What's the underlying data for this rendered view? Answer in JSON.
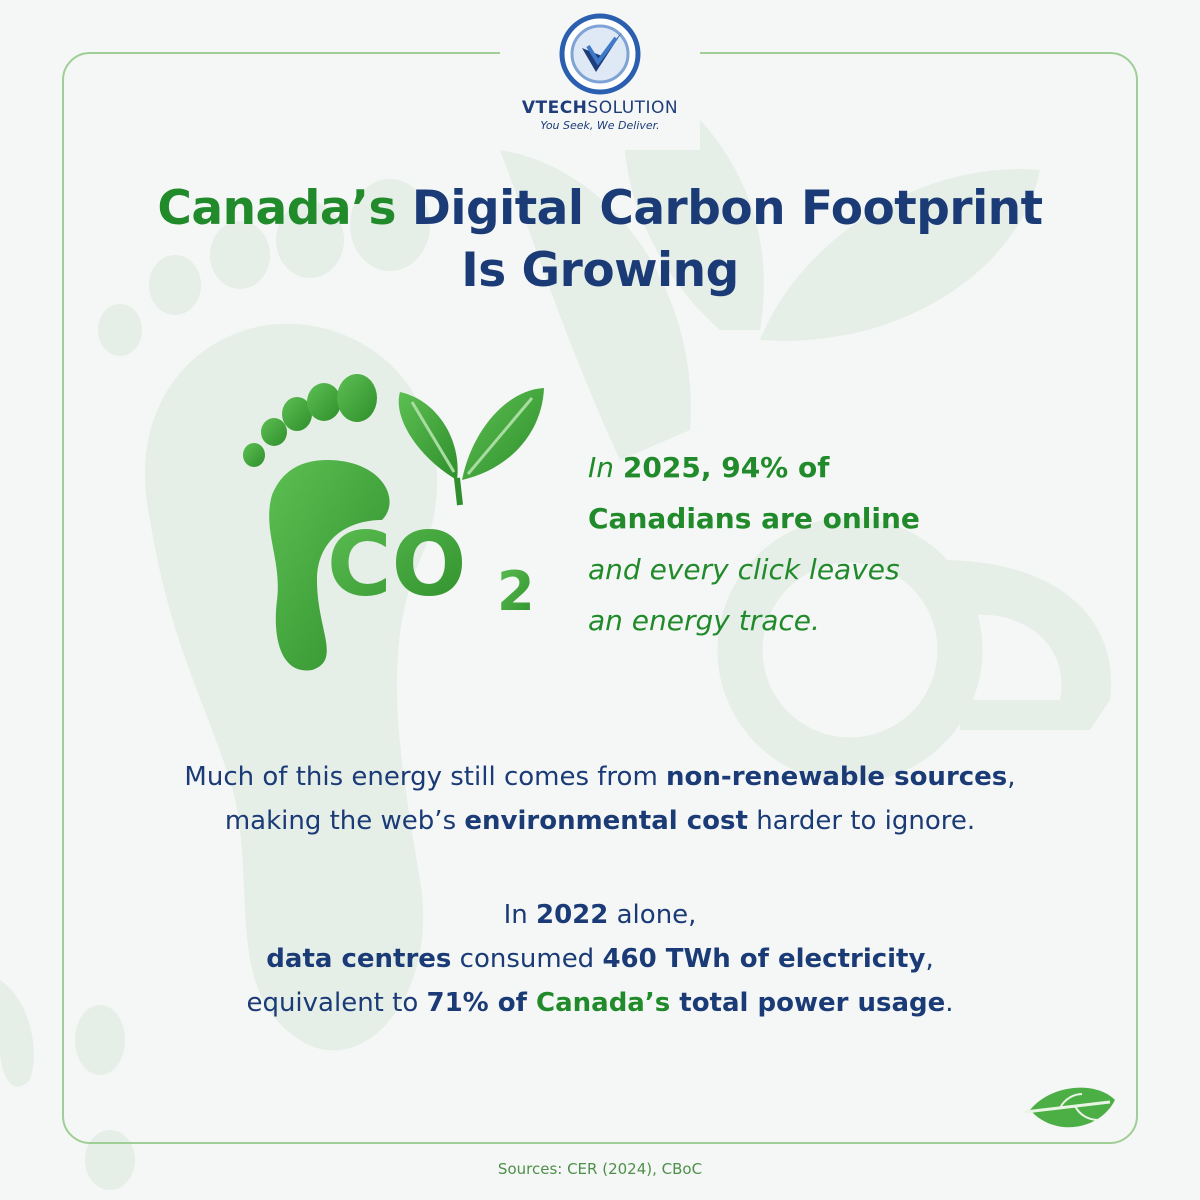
{
  "brand": {
    "name_bold": "VTECH",
    "name_regular": "SOLUTION",
    "tagline": "You Seek, We Deliver."
  },
  "title": {
    "part1": "Canada’s",
    "part2": " Digital Carbon Footprint",
    "part3": "Is Growing"
  },
  "illustration": {
    "co2_label": "CO",
    "co2_subscript": "2"
  },
  "side_text": {
    "s1": "In ",
    "s2": "2025, 94% of",
    "s3": "Canadians are online",
    "s4": "and every click leaves",
    "s5": "an energy trace."
  },
  "paragraph1": {
    "t1": "Much of this energy still comes from ",
    "t2": "non-renewable sources",
    "t3": ",",
    "t4": "making the web’s ",
    "t5": "environmental cost",
    "t6": " harder to ignore."
  },
  "paragraph2": {
    "t1": "In ",
    "t2": "2022",
    "t3": " alone,",
    "t4": "data centres",
    "t5": " consumed ",
    "t6": "460 TWh of electricity",
    "t7": ",",
    "t8": "equivalent to ",
    "t9": "71% of ",
    "t10": "Canada’s",
    "t11": " total power usage",
    "t12": "."
  },
  "sources": "Sources: CER (2024), CBoC",
  "colors": {
    "navy": "#1b3b77",
    "green": "#218a2a",
    "border": "#9fcf96",
    "background": "#f4f7f5"
  },
  "icons": [
    "vtech-logo-icon",
    "footprint-co2-icon",
    "leaf-icon"
  ]
}
